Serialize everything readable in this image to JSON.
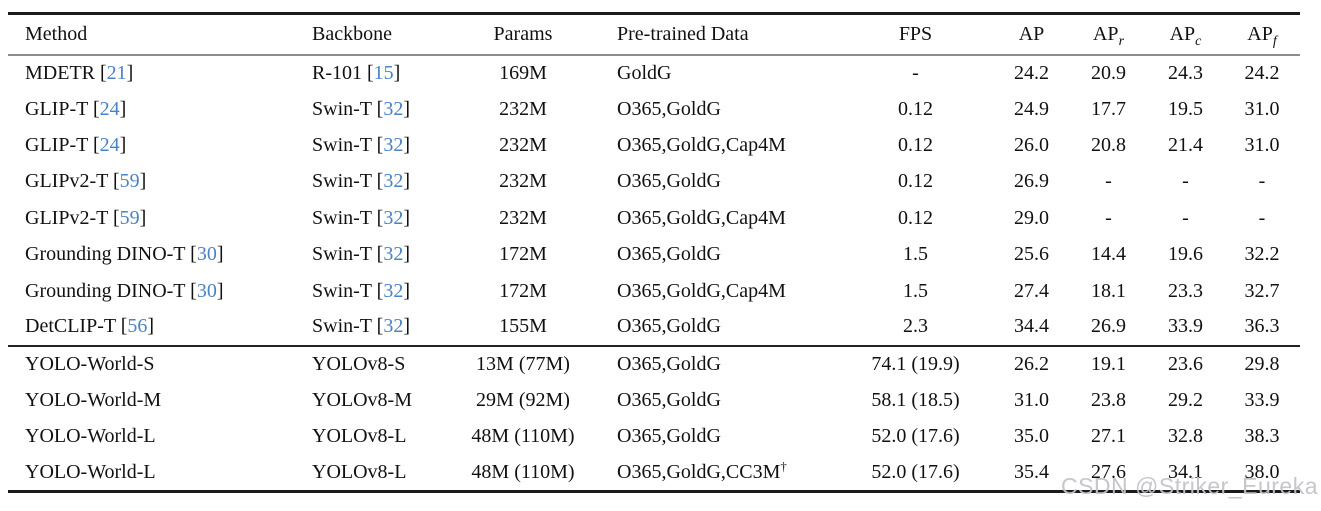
{
  "watermark": {
    "text": "CSDN @Striker_Eureka"
  },
  "colors": {
    "citation": "#4a82c6",
    "rule_heavy": "#1b1b1b",
    "rule_light": "#8c8c8c",
    "watermark": "#c3c3c8"
  },
  "table": {
    "columns": [
      {
        "label": "Method"
      },
      {
        "label": "Backbone"
      },
      {
        "label": "Params"
      },
      {
        "label": "Pre-trained Data"
      },
      {
        "label": "FPS"
      },
      {
        "label": "AP"
      },
      {
        "label": "AP",
        "sub": "r"
      },
      {
        "label": "AP",
        "sub": "c"
      },
      {
        "label": "AP",
        "sub": "f"
      }
    ],
    "groups": [
      {
        "rows": [
          {
            "method": {
              "name": "MDETR",
              "cite": "21"
            },
            "backbone": {
              "name": "R-101",
              "cite": "15"
            },
            "params": "169M",
            "pretrained": "GoldG",
            "fps": "-",
            "ap": "24.2",
            "ap_r": "20.9",
            "ap_c": "24.3",
            "ap_f": "24.2"
          },
          {
            "method": {
              "name": "GLIP-T",
              "cite": "24"
            },
            "backbone": {
              "name": "Swin-T",
              "cite": "32"
            },
            "params": "232M",
            "pretrained": "O365,GoldG",
            "fps": "0.12",
            "ap": "24.9",
            "ap_r": "17.7",
            "ap_c": "19.5",
            "ap_f": "31.0"
          },
          {
            "method": {
              "name": "GLIP-T",
              "cite": "24"
            },
            "backbone": {
              "name": "Swin-T",
              "cite": "32"
            },
            "params": "232M",
            "pretrained": "O365,GoldG,Cap4M",
            "fps": "0.12",
            "ap": "26.0",
            "ap_r": "20.8",
            "ap_c": "21.4",
            "ap_f": "31.0"
          },
          {
            "method": {
              "name": "GLIPv2-T",
              "cite": "59"
            },
            "backbone": {
              "name": "Swin-T",
              "cite": "32"
            },
            "params": "232M",
            "pretrained": "O365,GoldG",
            "fps": "0.12",
            "ap": "26.9",
            "ap_r": "-",
            "ap_c": "-",
            "ap_f": "-"
          },
          {
            "method": {
              "name": "GLIPv2-T",
              "cite": "59"
            },
            "backbone": {
              "name": "Swin-T",
              "cite": "32"
            },
            "params": "232M",
            "pretrained": "O365,GoldG,Cap4M",
            "fps": "0.12",
            "ap": "29.0",
            "ap_r": "-",
            "ap_c": "-",
            "ap_f": "-"
          },
          {
            "method": {
              "name": "Grounding DINO-T",
              "cite": "30"
            },
            "backbone": {
              "name": "Swin-T",
              "cite": "32"
            },
            "params": "172M",
            "pretrained": "O365,GoldG",
            "fps": "1.5",
            "ap": "25.6",
            "ap_r": "14.4",
            "ap_c": "19.6",
            "ap_f": "32.2"
          },
          {
            "method": {
              "name": "Grounding DINO-T",
              "cite": "30"
            },
            "backbone": {
              "name": "Swin-T",
              "cite": "32"
            },
            "params": "172M",
            "pretrained": "O365,GoldG,Cap4M",
            "fps": "1.5",
            "ap": "27.4",
            "ap_r": "18.1",
            "ap_c": "23.3",
            "ap_f": "32.7"
          },
          {
            "method": {
              "name": "DetCLIP-T",
              "cite": "56"
            },
            "backbone": {
              "name": "Swin-T",
              "cite": "32"
            },
            "params": "155M",
            "pretrained": "O365,GoldG",
            "fps": "2.3",
            "ap": "34.4",
            "ap_r": "26.9",
            "ap_c": "33.9",
            "ap_f": "36.3"
          }
        ]
      },
      {
        "rows": [
          {
            "method": {
              "name": "YOLO-World-S"
            },
            "backbone": {
              "name": "YOLOv8-S"
            },
            "params": "13M (77M)",
            "pretrained": "O365,GoldG",
            "fps": "74.1 (19.9)",
            "ap": "26.2",
            "ap_r": "19.1",
            "ap_c": "23.6",
            "ap_f": "29.8"
          },
          {
            "method": {
              "name": "YOLO-World-M"
            },
            "backbone": {
              "name": "YOLOv8-M"
            },
            "params": "29M (92M)",
            "pretrained": "O365,GoldG",
            "fps": "58.1 (18.5)",
            "ap": "31.0",
            "ap_r": "23.8",
            "ap_c": "29.2",
            "ap_f": "33.9"
          },
          {
            "method": {
              "name": "YOLO-World-L"
            },
            "backbone": {
              "name": "YOLOv8-L"
            },
            "params": "48M (110M)",
            "pretrained": "O365,GoldG",
            "fps": "52.0 (17.6)",
            "ap": "35.0",
            "ap_r": "27.1",
            "ap_c": "32.8",
            "ap_f": "38.3"
          },
          {
            "method": {
              "name": "YOLO-World-L"
            },
            "backbone": {
              "name": "YOLOv8-L"
            },
            "params": "48M (110M)",
            "pretrained": "O365,GoldG,CC3M",
            "pretrained_sup": "†",
            "fps": "52.0 (17.6)",
            "ap": "35.4",
            "ap_r": "27.6",
            "ap_c": "34.1",
            "ap_f": "38.0"
          }
        ]
      }
    ]
  }
}
